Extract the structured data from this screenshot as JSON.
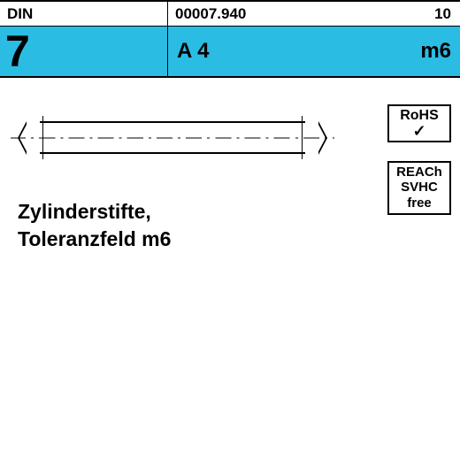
{
  "header": {
    "standard_label": "DIN",
    "code": "00007.940",
    "rev": "10"
  },
  "cyan": {
    "din_number": "7",
    "material": "A 4",
    "tolerance": "m6",
    "bg_color": "#2bbce3"
  },
  "labels": {
    "line1": "Zylinderstifte,",
    "line2": "Toleranzfeld m6"
  },
  "badges": {
    "rohs": {
      "title": "RoHS",
      "check": "✓"
    },
    "reach": {
      "l1": "REACh",
      "l2": "SVHC",
      "l3": "free"
    }
  }
}
